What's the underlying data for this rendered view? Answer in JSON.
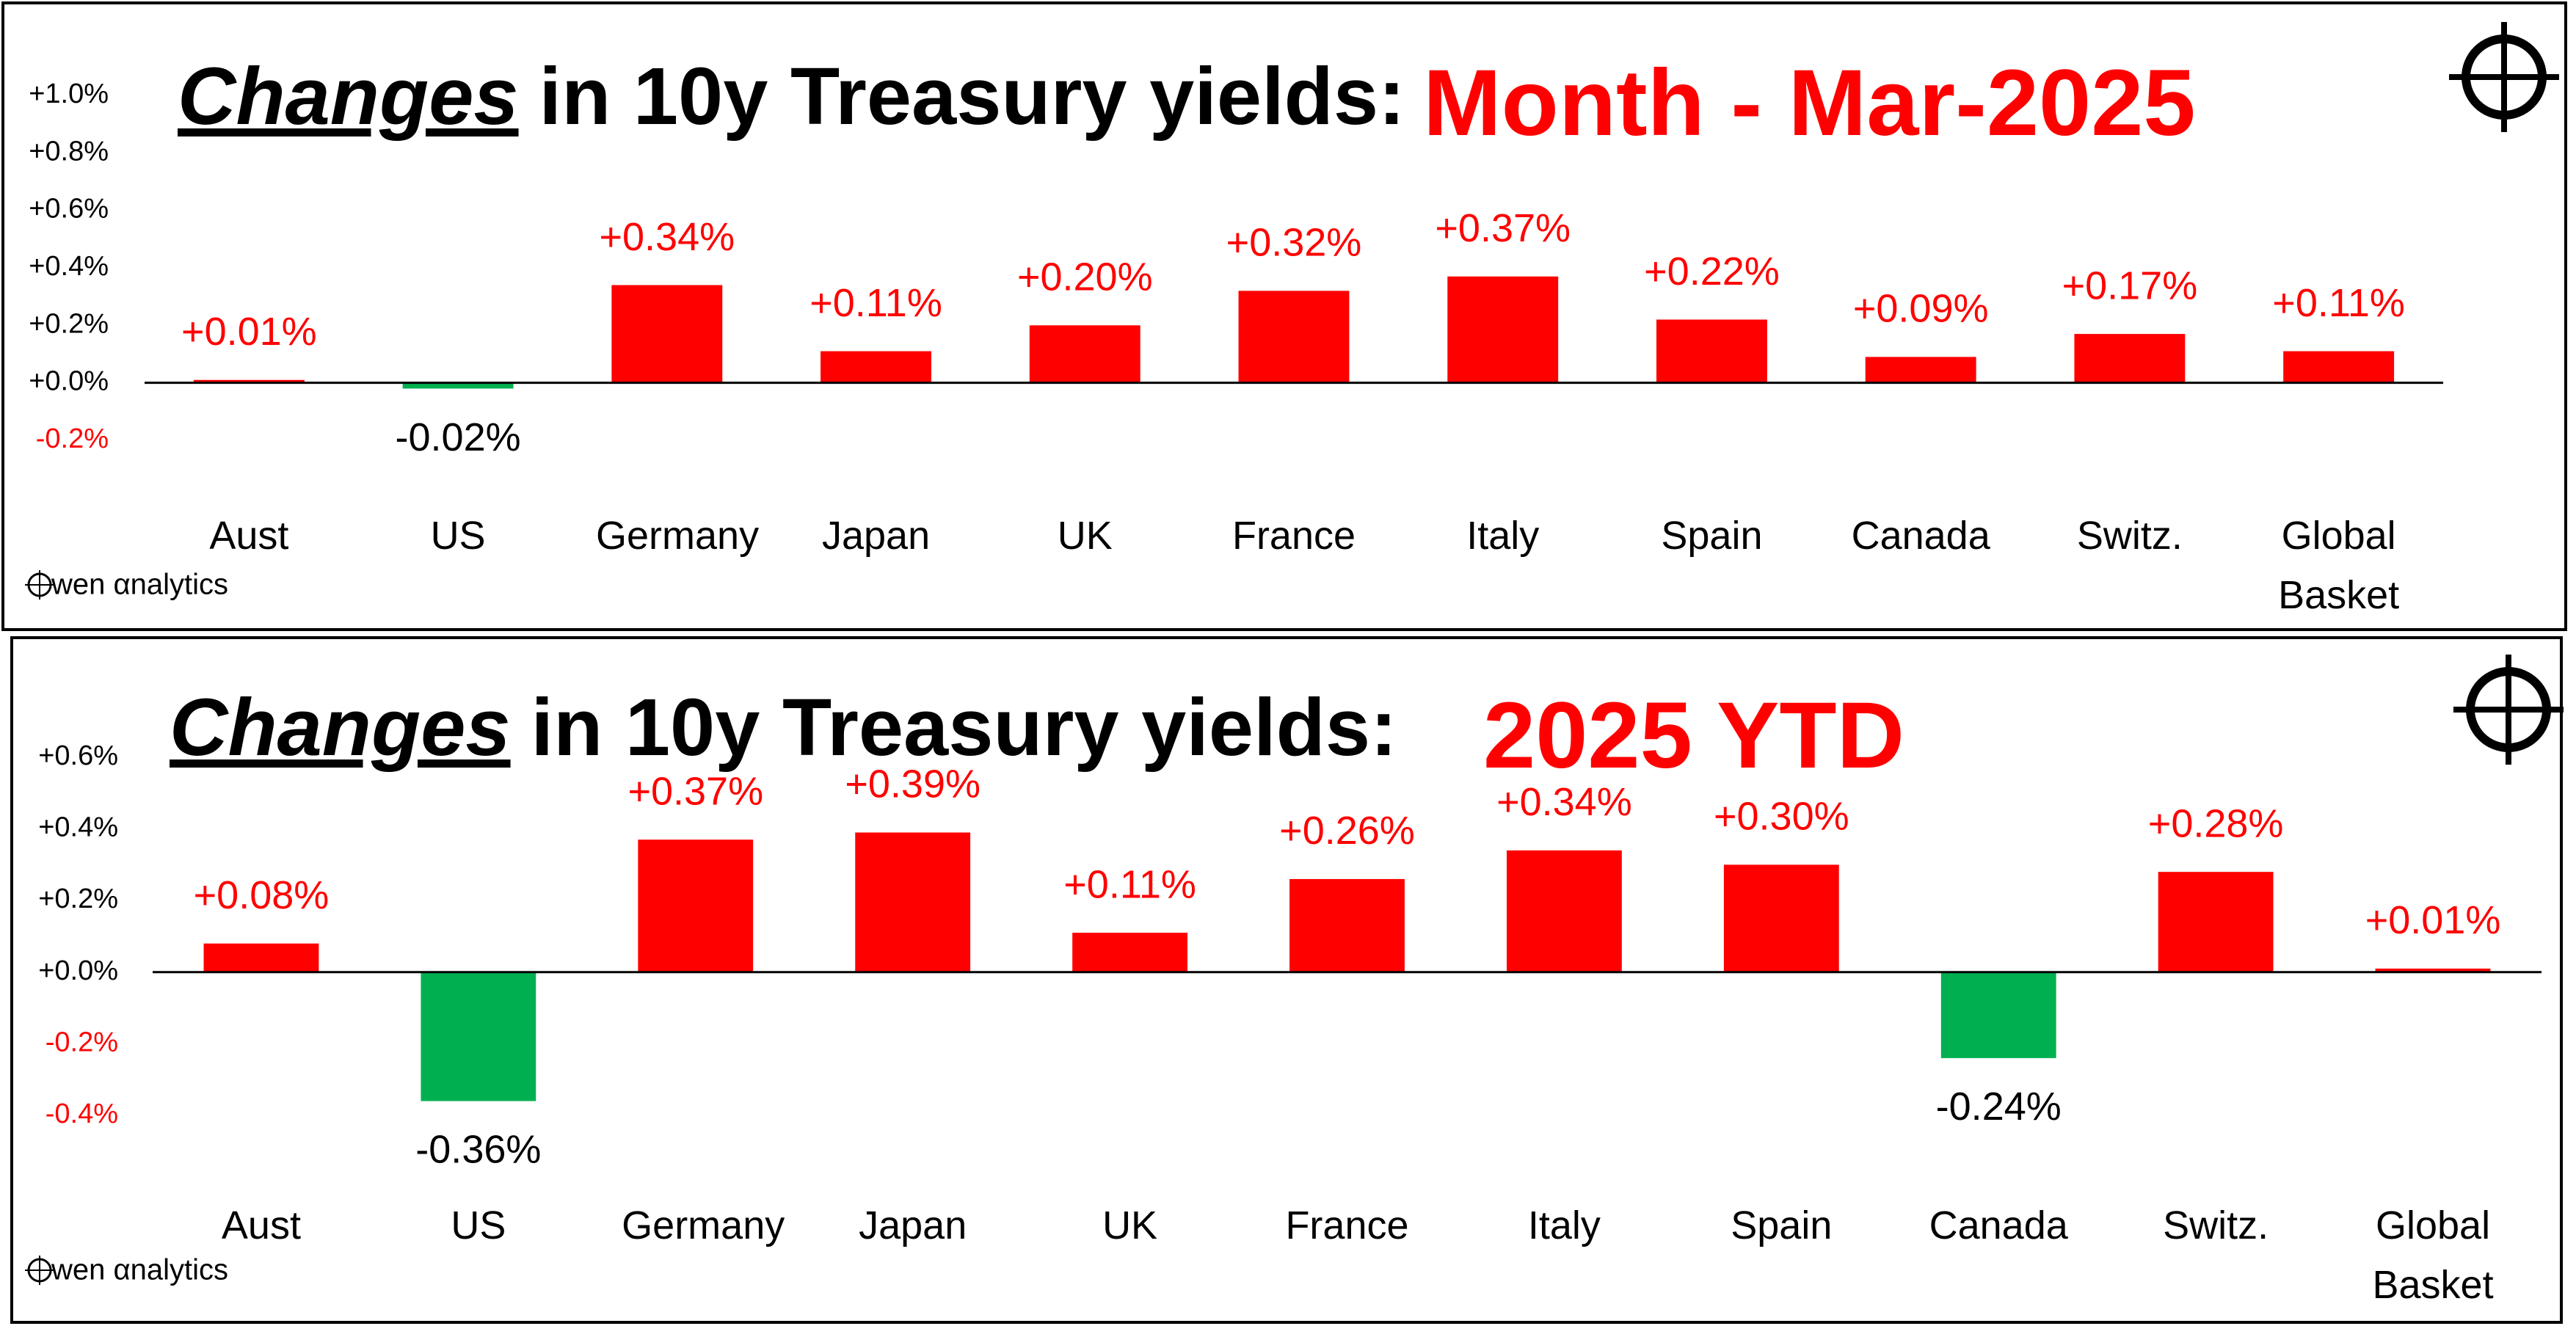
{
  "chart_data": [
    {
      "type": "bar",
      "title_emphasis": "Changes",
      "title": "in 10y Treasury yields:",
      "subtitle": "Month -  Mar-2025",
      "logo": "wen αnalytics",
      "categories": [
        "Aust",
        "US",
        "Germany",
        "Japan",
        "UK",
        "France",
        "Italy",
        "Spain",
        "Canada",
        "Switz.",
        "Global Basket"
      ],
      "values": [
        0.01,
        -0.02,
        0.34,
        0.11,
        0.2,
        0.32,
        0.37,
        0.22,
        0.09,
        0.17,
        0.11
      ],
      "value_labels": [
        "+0.01%",
        "-0.02%",
        "+0.34%",
        "+0.11%",
        "+0.20%",
        "+0.32%",
        "+0.37%",
        "+0.22%",
        "+0.09%",
        "+0.17%",
        "+0.11%"
      ],
      "positive_color": "#ff0000",
      "negative_color": "#00b050",
      "ylim": [
        -0.2,
        1.0
      ],
      "yticks": [
        {
          "value": -0.2,
          "label": "-0.2%"
        },
        {
          "value": 0.0,
          "label": "+0.0%"
        },
        {
          "value": 0.2,
          "label": "+0.2%"
        },
        {
          "value": 0.4,
          "label": "+0.4%"
        },
        {
          "value": 0.6,
          "label": "+0.6%"
        },
        {
          "value": 0.8,
          "label": "+0.8%"
        },
        {
          "value": 1.0,
          "label": "+1.0%"
        }
      ],
      "grid": false
    },
    {
      "type": "bar",
      "title_emphasis": "Changes",
      "title": "in 10y Treasury yields:",
      "subtitle": "2025 YTD",
      "logo": "wen αnalytics",
      "categories": [
        "Aust",
        "US",
        "Germany",
        "Japan",
        "UK",
        "France",
        "Italy",
        "Spain",
        "Canada",
        "Switz.",
        "Global Basket"
      ],
      "values": [
        0.08,
        -0.36,
        0.37,
        0.39,
        0.11,
        0.26,
        0.34,
        0.3,
        -0.24,
        0.28,
        0.01
      ],
      "value_labels": [
        "+0.08%",
        "-0.36%",
        "+0.37%",
        "+0.39%",
        "+0.11%",
        "+0.26%",
        "+0.34%",
        "+0.30%",
        "-0.24%",
        "+0.28%",
        "+0.01%"
      ],
      "positive_color": "#ff0000",
      "negative_color": "#00b050",
      "ylim": [
        -0.4,
        0.6
      ],
      "yticks": [
        {
          "value": -0.4,
          "label": "-0.4%"
        },
        {
          "value": -0.2,
          "label": "-0.2%"
        },
        {
          "value": 0.0,
          "label": "+0.0%"
        },
        {
          "value": 0.2,
          "label": "+0.2%"
        },
        {
          "value": 0.4,
          "label": "+0.4%"
        },
        {
          "value": 0.6,
          "label": "+0.6%"
        }
      ],
      "grid": false
    }
  ]
}
